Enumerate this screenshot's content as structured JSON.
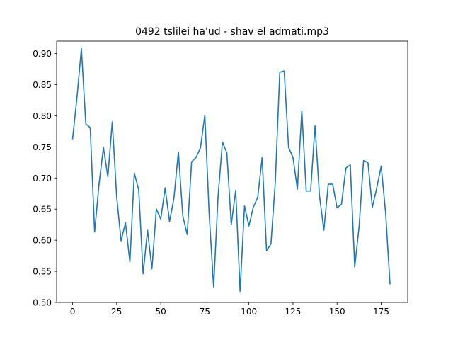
{
  "chart_data": {
    "type": "line",
    "title": "0492 tslilei ha'ud - shav el admati.mp3",
    "xlabel": "",
    "ylabel": "",
    "xlim": [
      -9.05,
      190.05
    ],
    "ylim": [
      0.5,
      0.92
    ],
    "x_ticks": [
      0,
      25,
      50,
      75,
      100,
      125,
      150,
      175
    ],
    "y_ticks": [
      0.5,
      0.55,
      0.6,
      0.65,
      0.7,
      0.75,
      0.8,
      0.85,
      0.9
    ],
    "grid": false,
    "line_color": "#1f77b4",
    "series": [
      {
        "x": [
          0,
          2.5,
          5,
          7.5,
          10,
          12.5,
          15,
          17.5,
          20,
          22.5,
          25,
          27.5,
          30,
          32.5,
          35,
          37.5,
          40,
          42.5,
          45,
          47.5,
          50,
          52.5,
          55,
          57.5,
          60,
          62.5,
          65,
          67.5,
          70,
          72.5,
          75,
          77.5,
          80,
          82.5,
          85,
          87.5,
          90,
          92.5,
          95,
          97.5,
          100,
          102.5,
          105,
          107.5,
          110,
          112.5,
          115,
          117.5,
          120,
          122.5,
          125,
          127.5,
          130,
          132.5,
          135,
          137.5,
          140,
          142.5,
          145,
          147.5,
          150,
          152.5,
          155,
          157.5,
          160,
          162.5,
          165,
          167.5,
          170,
          172.5,
          175,
          177.5,
          180
        ],
        "values": [
          0.763,
          0.83,
          0.908,
          0.787,
          0.781,
          0.613,
          0.69,
          0.749,
          0.702,
          0.79,
          0.67,
          0.599,
          0.628,
          0.565,
          0.708,
          0.681,
          0.546,
          0.616,
          0.554,
          0.65,
          0.634,
          0.684,
          0.63,
          0.668,
          0.742,
          0.639,
          0.609,
          0.726,
          0.733,
          0.748,
          0.801,
          0.64,
          0.525,
          0.67,
          0.758,
          0.74,
          0.625,
          0.68,
          0.518,
          0.655,
          0.623,
          0.653,
          0.669,
          0.733,
          0.583,
          0.594,
          0.695,
          0.87,
          0.872,
          0.749,
          0.733,
          0.682,
          0.808,
          0.679,
          0.679,
          0.784,
          0.672,
          0.616,
          0.69,
          0.69,
          0.652,
          0.658,
          0.716,
          0.721,
          0.557,
          0.622,
          0.728,
          0.725,
          0.653,
          0.684,
          0.719,
          0.645,
          0.53
        ]
      }
    ]
  }
}
